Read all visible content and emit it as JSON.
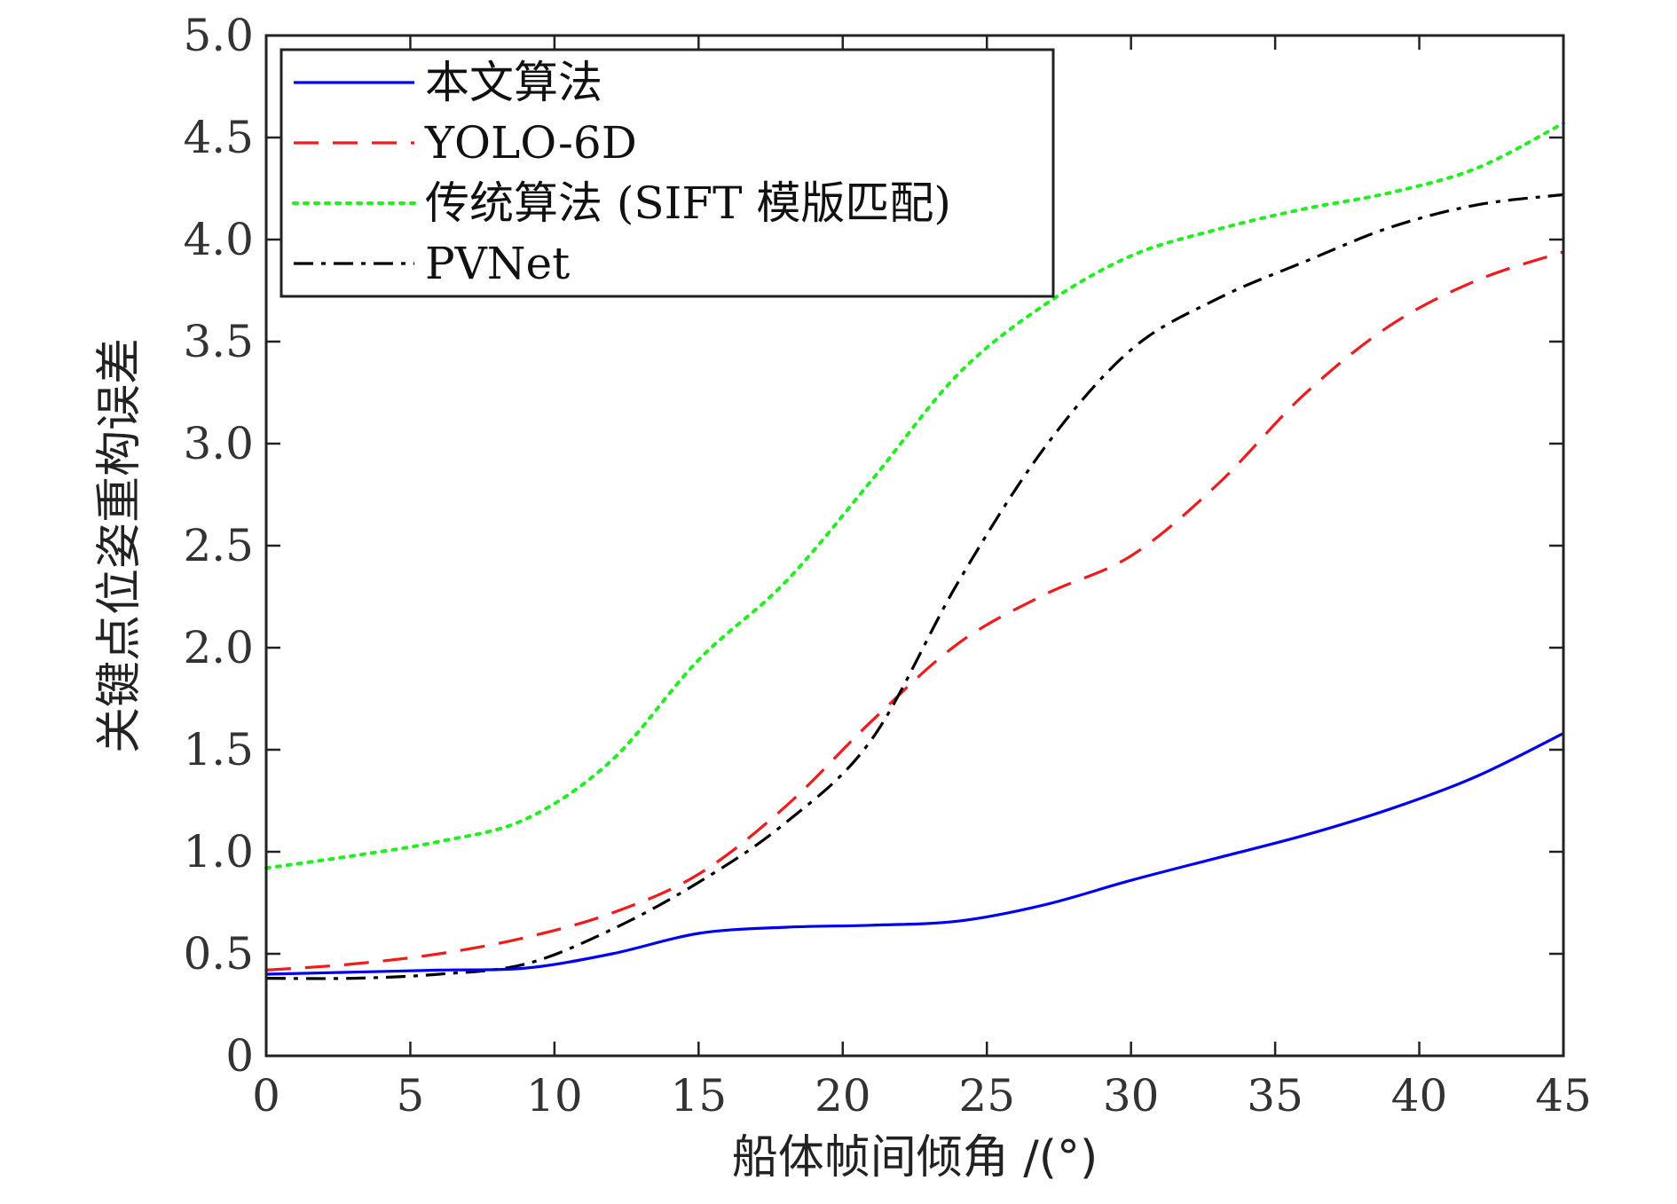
{
  "chart_data": {
    "type": "line",
    "title": "",
    "xlabel": "船体帧间倾角 /(°)",
    "ylabel": "关键点位姿重构误差",
    "xlim": [
      0,
      45
    ],
    "ylim": [
      0,
      5.0
    ],
    "xticks": [
      0,
      5,
      10,
      15,
      20,
      25,
      30,
      35,
      40,
      45
    ],
    "xtick_labels": [
      "0",
      "5",
      "10",
      "15",
      "20",
      "25",
      "30",
      "35",
      "40",
      "45"
    ],
    "yticks": [
      0,
      0.5,
      1.0,
      1.5,
      2.0,
      2.5,
      3.0,
      3.5,
      4.0,
      4.5,
      5.0
    ],
    "ytick_labels": [
      "0",
      "0.5",
      "1.0",
      "1.5",
      "2.0",
      "2.5",
      "3.0",
      "3.5",
      "4.0",
      "4.5",
      "5.0"
    ],
    "grid": false,
    "legend_position": "top-left",
    "x": [
      0,
      3,
      6,
      9,
      12,
      15,
      18,
      21,
      24,
      27,
      30,
      33,
      36,
      39,
      42,
      45
    ],
    "series": [
      {
        "name": "本文算法",
        "color": "#0000ee",
        "dash": "solid",
        "values": [
          0.4,
          0.41,
          0.42,
          0.43,
          0.5,
          0.6,
          0.63,
          0.64,
          0.66,
          0.74,
          0.86,
          0.97,
          1.08,
          1.21,
          1.37,
          1.58
        ]
      },
      {
        "name": "YOLO-6D",
        "color": "#ee1c1c",
        "dash": "long-dash",
        "values": [
          0.42,
          0.45,
          0.5,
          0.58,
          0.7,
          0.89,
          1.22,
          1.64,
          2.02,
          2.26,
          2.45,
          2.8,
          3.24,
          3.58,
          3.8,
          3.94
        ]
      },
      {
        "name": "传统算法 (SIFT 模版匹配)",
        "color": "#22ee22",
        "dash": "dotted",
        "values": [
          0.92,
          0.98,
          1.05,
          1.16,
          1.45,
          1.94,
          2.32,
          2.82,
          3.34,
          3.68,
          3.92,
          4.05,
          4.15,
          4.23,
          4.35,
          4.57
        ]
      },
      {
        "name": "PVNet",
        "color": "#000000",
        "dash": "dash-dot",
        "values": [
          0.38,
          0.38,
          0.4,
          0.45,
          0.62,
          0.85,
          1.14,
          1.55,
          2.32,
          2.98,
          3.46,
          3.71,
          3.89,
          4.06,
          4.17,
          4.22
        ]
      }
    ]
  }
}
